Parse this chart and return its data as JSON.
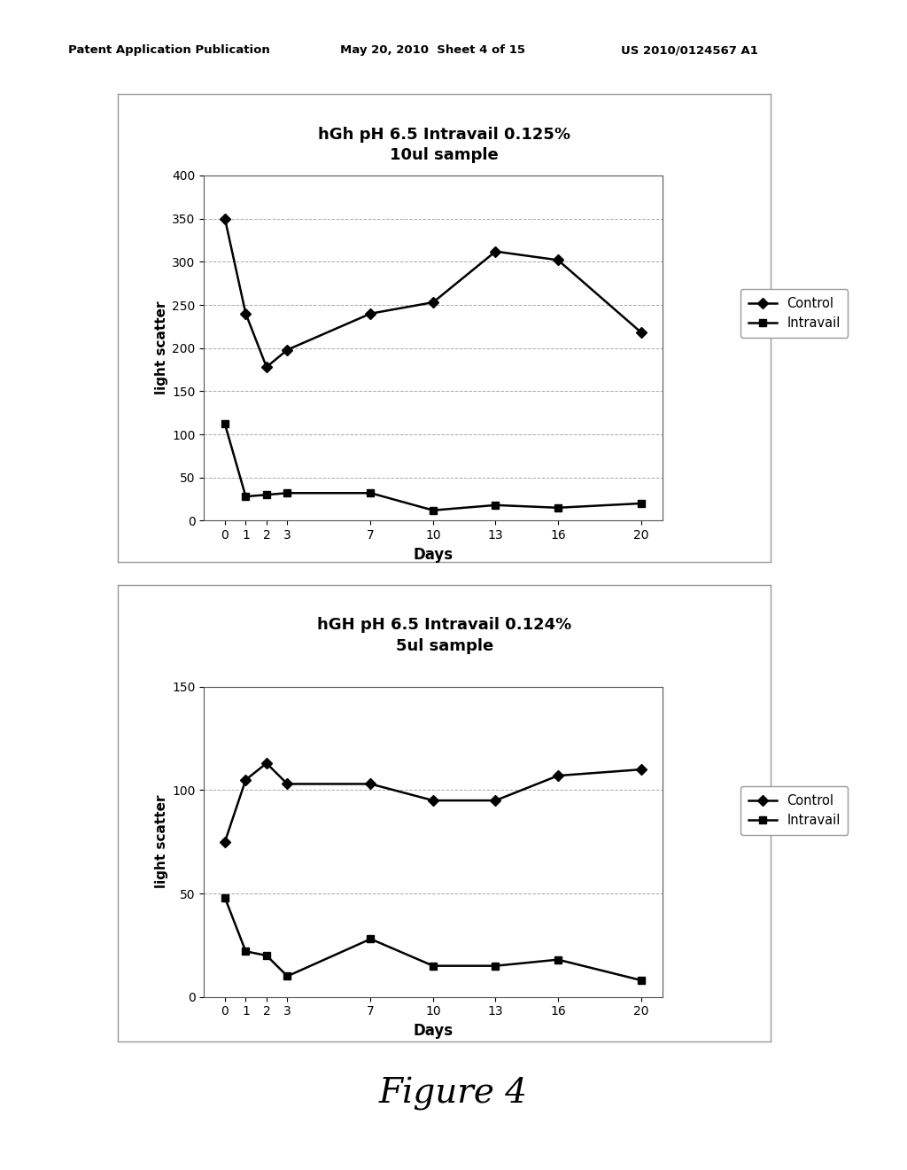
{
  "chart1": {
    "title_line1": "hGh pH 6.5 Intravail 0.125%",
    "title_line2": "10ul sample",
    "xlabel": "Days",
    "ylabel": "light scatter",
    "days": [
      0,
      1,
      2,
      3,
      7,
      10,
      13,
      16,
      20
    ],
    "control": [
      350,
      240,
      178,
      198,
      240,
      253,
      312,
      302,
      218
    ],
    "intravail": [
      112,
      28,
      30,
      32,
      32,
      12,
      18,
      15,
      20
    ],
    "ylim": [
      0,
      400
    ],
    "yticks": [
      0,
      50,
      100,
      150,
      200,
      250,
      300,
      350,
      400
    ]
  },
  "chart2": {
    "title_line1": "hGH pH 6.5 Intravail 0.124%",
    "title_line2": "5ul sample",
    "xlabel": "Days",
    "ylabel": "light scatter",
    "days": [
      0,
      1,
      2,
      3,
      7,
      10,
      13,
      16,
      20
    ],
    "control": [
      75,
      105,
      113,
      103,
      103,
      95,
      95,
      107,
      110
    ],
    "intravail": [
      48,
      22,
      20,
      10,
      28,
      15,
      15,
      18,
      8
    ],
    "ylim": [
      0,
      150
    ],
    "yticks": [
      0,
      50,
      100,
      150
    ]
  },
  "header_left": "Patent Application Publication",
  "header_mid": "May 20, 2010  Sheet 4 of 15",
  "header_right": "US 2010/0124567 A1",
  "figure_label": "Figure 4",
  "line_color": "#000000",
  "bg_color": "#ffffff",
  "grid_color": "#aaaaaa",
  "box_color": "#999999"
}
